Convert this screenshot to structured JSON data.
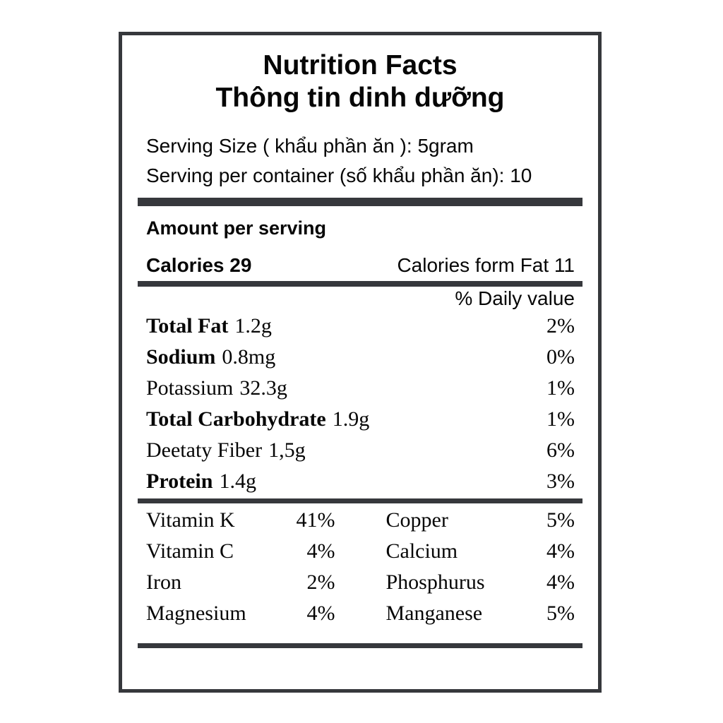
{
  "label": {
    "title_en": "Nutrition Facts",
    "title_vi": "Thông tin dinh dưỡng",
    "serving_size": "Serving Size ( khẩu phần ăn ): 5gram",
    "servings_per_container": "Serving per container (số khẩu phần ăn): 10",
    "amount_per_serving": "Amount per serving",
    "calories": "Calories 29",
    "calories_from_fat": "Calories form Fat 11",
    "daily_value_header": "% Daily value",
    "nutrients": [
      {
        "name": "Total Fat",
        "amount": "1.2g",
        "dv": "2%"
      },
      {
        "name": "Sodium",
        "amount": "0.8mg",
        "dv": "0%"
      },
      {
        "name": "Potassium",
        "amount": "32.3g",
        "dv": "1%"
      },
      {
        "name": "Total Carbohydrate",
        "amount": "1.9g",
        "dv": "1%"
      },
      {
        "name": "Deetaty Fiber",
        "amount": "1,5g",
        "dv": "6%"
      },
      {
        "name": "Protein",
        "amount": "1.4g",
        "dv": "3%"
      }
    ],
    "micronutrients": [
      {
        "name": "Vitamin K",
        "dv": "41%"
      },
      {
        "name": "Copper",
        "dv": "5%"
      },
      {
        "name": "Vitamin C",
        "dv": "4%"
      },
      {
        "name": "Calcium",
        "dv": "4%"
      },
      {
        "name": "Iron",
        "dv": "2%"
      },
      {
        "name": "Phosphurus",
        "dv": "4%"
      },
      {
        "name": "Magnesium",
        "dv": "4%"
      },
      {
        "name": "Manganese",
        "dv": "5%"
      }
    ],
    "colors": {
      "bar": "#36383c",
      "text": "#060606",
      "background": "#ffffff"
    }
  }
}
